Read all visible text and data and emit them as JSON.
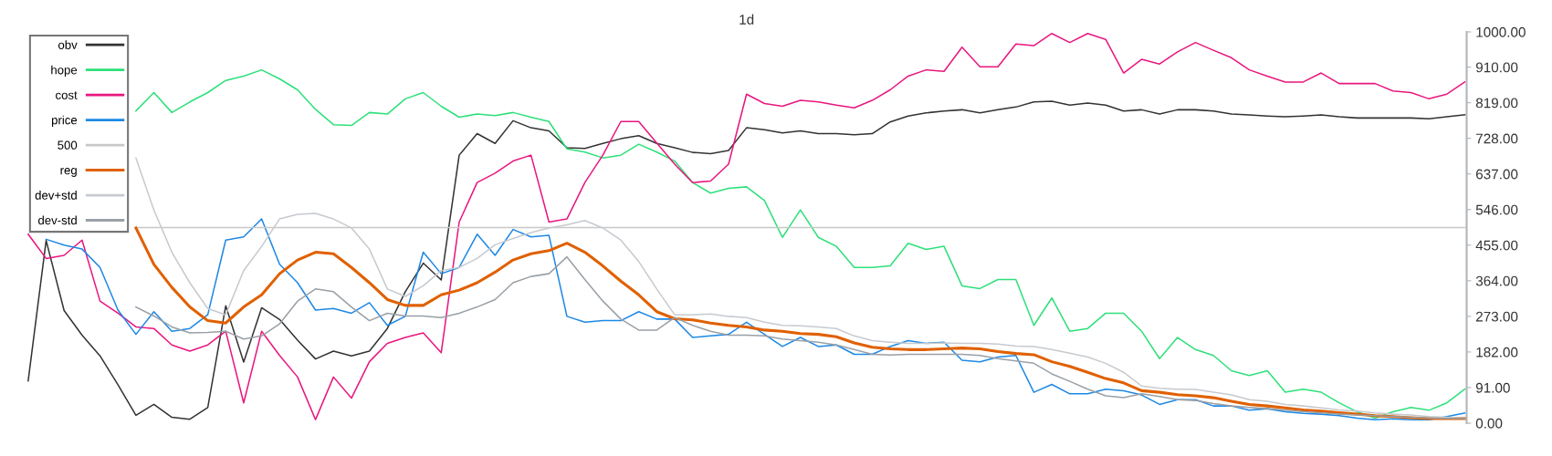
{
  "chart_data": {
    "type": "line",
    "title": "1d",
    "categories": [
      null,
      null,
      null,
      null,
      null,
      null,
      null,
      null,
      null,
      null,
      null,
      null,
      null,
      null,
      null,
      null,
      null,
      null,
      null,
      null,
      null,
      null,
      null,
      null,
      null,
      null,
      null,
      null,
      null,
      null,
      null,
      null,
      null,
      null,
      null,
      null,
      null,
      null,
      null,
      null,
      null,
      null,
      null,
      null,
      null,
      null,
      null,
      null,
      null,
      null,
      null,
      null,
      null,
      null,
      null,
      null,
      null,
      null,
      null,
      null,
      null,
      null,
      null,
      null,
      null,
      null,
      null,
      null,
      null,
      null,
      null,
      null,
      null,
      null,
      null,
      null,
      null,
      null,
      null,
      null,
      null
    ],
    "series": [
      {
        "name": "obv",
        "color": "#333333",
        "values": [
          108,
          467,
          288,
          225,
          172,
          98,
          20,
          48,
          15,
          10,
          40,
          300,
          156,
          295,
          265,
          212,
          164,
          184,
          172,
          184,
          242,
          336,
          409,
          366,
          685,
          740,
          715,
          773,
          755,
          747,
          704,
          702,
          715,
          727,
          735,
          715,
          704,
          692,
          689,
          697,
          755,
          750,
          742,
          747,
          740,
          740,
          737,
          740,
          770,
          785,
          793,
          798,
          801,
          793,
          801,
          808,
          821,
          823,
          813,
          818,
          813,
          798,
          801,
          790,
          801,
          801,
          798,
          790,
          788,
          785,
          783,
          785,
          788,
          783,
          780,
          780,
          780,
          780,
          778,
          783,
          788
        ]
      },
      {
        "name": "hope",
        "color": "#2ee07a",
        "values": [
          null,
          null,
          null,
          null,
          null,
          null,
          798,
          845,
          794,
          821,
          845,
          876,
          887,
          903,
          880,
          852,
          802,
          763,
          761,
          794,
          790,
          829,
          845,
          810,
          782,
          790,
          786,
          794,
          782,
          771,
          701,
          693,
          678,
          685,
          713,
          693,
          670,
          615,
          588,
          600,
          604,
          569,
          475,
          545,
          475,
          452,
          398,
          398,
          402,
          460,
          444,
          452,
          351,
          344,
          367,
          367,
          250,
          320,
          235,
          242,
          281,
          281,
          235,
          165,
          219,
          188,
          173,
          134,
          122,
          134,
          79,
          87,
          79,
          52,
          29,
          13,
          29,
          40,
          33,
          52,
          87
        ]
      },
      {
        "name": "cost",
        "color": "#e8177f",
        "values": [
          483,
          421,
          429,
          468,
          312,
          281,
          246,
          242,
          200,
          184,
          200,
          235,
          52,
          235,
          173,
          118,
          9,
          118,
          64,
          157,
          204,
          219,
          231,
          180,
          514,
          615,
          639,
          670,
          685,
          514,
          522,
          615,
          685,
          771,
          771,
          716,
          662,
          615,
          619,
          662,
          841,
          817,
          810,
          825,
          821,
          813,
          806,
          825,
          852,
          887,
          903,
          899,
          961,
          911,
          911,
          969,
          965,
          996,
          973,
          996,
          981,
          895,
          930,
          918,
          949,
          973,
          953,
          934,
          903,
          887,
          872,
          872,
          895,
          868,
          868,
          868,
          849,
          845,
          829,
          841,
          872
        ]
      },
      {
        "name": "price",
        "color": "#1e88e5",
        "values": [
          null,
          470,
          455,
          445,
          398,
          289,
          227,
          285,
          235,
          242,
          277,
          468,
          476,
          522,
          406,
          359,
          289,
          293,
          281,
          308,
          250,
          273,
          437,
          382,
          398,
          483,
          429,
          495,
          476,
          480,
          273,
          258,
          262,
          262,
          285,
          266,
          266,
          219,
          223,
          227,
          258,
          227,
          196,
          219,
          196,
          200,
          176,
          176,
          196,
          211,
          204,
          207,
          161,
          157,
          169,
          173,
          79,
          99,
          75,
          75,
          87,
          83,
          72,
          48,
          60,
          60,
          44,
          44,
          33,
          37,
          29,
          25,
          23,
          19,
          13,
          9,
          11,
          9,
          9,
          17,
          26
        ]
      },
      {
        "name": "500",
        "color": "#c8c8c8",
        "values": [
          null,
          null,
          null,
          null,
          null,
          null,
          500,
          500,
          500,
          500,
          500,
          500,
          500,
          500,
          500,
          500,
          500,
          500,
          500,
          500,
          500,
          500,
          500,
          500,
          500,
          500,
          500,
          500,
          500,
          500,
          500,
          500,
          500,
          500,
          500,
          500,
          500,
          500,
          500,
          500,
          500,
          500,
          500,
          500,
          500,
          500,
          500,
          500,
          500,
          500,
          500,
          500,
          500,
          500,
          500,
          500,
          500,
          500,
          500,
          500,
          500,
          500,
          500,
          500,
          500,
          500,
          500,
          500,
          500,
          500,
          500,
          500,
          500,
          500,
          500,
          500,
          500,
          500,
          500,
          500,
          500
        ]
      },
      {
        "name": "reg",
        "color": "#e06000",
        "values": [
          null,
          null,
          null,
          null,
          null,
          null,
          499,
          406,
          347,
          297,
          262,
          256,
          297,
          328,
          382,
          417,
          437,
          433,
          398,
          359,
          316,
          301,
          301,
          328,
          340,
          359,
          386,
          417,
          433,
          441,
          460,
          437,
          402,
          363,
          328,
          285,
          267,
          264,
          256,
          250,
          246,
          238,
          235,
          229,
          227,
          221,
          205,
          194,
          190,
          188,
          188,
          190,
          192,
          190,
          183,
          178,
          175,
          157,
          145,
          130,
          114,
          103,
          83,
          79,
          73,
          70,
          65,
          56,
          48,
          44,
          39,
          34,
          31,
          27,
          23,
          19,
          17,
          14,
          12,
          12,
          12
        ]
      },
      {
        "name": "dev+std",
        "color": "#c6cacf",
        "values": [
          null,
          null,
          null,
          null,
          null,
          null,
          678,
          545,
          437,
          359,
          293,
          277,
          390,
          452,
          522,
          534,
          536,
          522,
          499,
          445,
          343,
          324,
          351,
          390,
          398,
          421,
          456,
          472,
          487,
          499,
          507,
          518,
          499,
          468,
          413,
          343,
          277,
          277,
          279,
          273,
          270,
          258,
          250,
          249,
          246,
          242,
          223,
          211,
          207,
          204,
          204,
          205,
          204,
          204,
          202,
          197,
          196,
          188,
          179,
          169,
          153,
          130,
          95,
          89,
          87,
          86,
          79,
          72,
          60,
          56,
          48,
          44,
          39,
          34,
          31,
          26,
          23,
          21,
          17,
          15,
          13
        ]
      },
      {
        "name": "dev-std",
        "color": "#9aa0a6",
        "values": [
          null,
          null,
          null,
          null,
          null,
          null,
          297,
          274,
          246,
          231,
          232,
          235,
          215,
          223,
          254,
          312,
          343,
          336,
          297,
          262,
          281,
          274,
          274,
          270,
          281,
          297,
          316,
          359,
          375,
          382,
          425,
          367,
          312,
          266,
          238,
          238,
          270,
          250,
          235,
          225,
          225,
          223,
          215,
          211,
          207,
          200,
          188,
          176,
          174,
          176,
          176,
          176,
          176,
          173,
          165,
          159,
          153,
          126,
          107,
          87,
          70,
          65,
          75,
          68,
          60,
          58,
          50,
          44,
          40,
          37,
          33,
          29,
          26,
          23,
          21,
          19,
          17,
          15,
          13,
          12,
          12
        ]
      }
    ],
    "ylim": [
      0,
      1000
    ],
    "yticks": [
      {
        "value": 0,
        "label": "0.00"
      },
      {
        "value": 91,
        "label": "91.00"
      },
      {
        "value": 182,
        "label": "182.00"
      },
      {
        "value": 273,
        "label": "273.00"
      },
      {
        "value": 364,
        "label": "364.00"
      },
      {
        "value": 455,
        "label": "455.00"
      },
      {
        "value": 546,
        "label": "546.00"
      },
      {
        "value": 637,
        "label": "637.00"
      },
      {
        "value": 728,
        "label": "728.00"
      },
      {
        "value": 819,
        "label": "819.00"
      },
      {
        "value": 910,
        "label": "910.00"
      },
      {
        "value": 1000,
        "label": "1000.00"
      }
    ],
    "tick_labels": "y",
    "grid": false,
    "legend": "top left",
    "marker": "none",
    "line_style": "solid"
  }
}
